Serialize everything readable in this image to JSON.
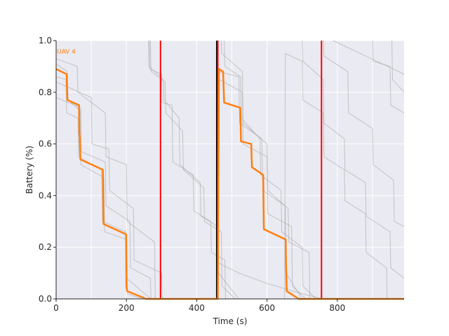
{
  "chart_data": {
    "type": "line",
    "title": "",
    "xlabel": "Time (s)",
    "ylabel": "Battery (%)",
    "xlim": [
      0,
      990
    ],
    "ylim": [
      0,
      1.0
    ],
    "xticks": [
      0,
      200,
      400,
      600,
      800
    ],
    "yticks": [
      0.0,
      0.2,
      0.4,
      0.6,
      0.8,
      1.0
    ],
    "grid": true,
    "background": "#eaeaf2",
    "colors": {
      "highlight": "#ff7f0e",
      "background_series": "#b0b0b0",
      "red_marker": "#ff0000",
      "black_marker": "#000000"
    },
    "highlight_series": {
      "name": "UAV 4",
      "points": [
        [
          0,
          0.89
        ],
        [
          30,
          0.87
        ],
        [
          32,
          0.77
        ],
        [
          65,
          0.75
        ],
        [
          66,
          0.64
        ],
        [
          67,
          0.63
        ],
        [
          69,
          0.54
        ],
        [
          133,
          0.5
        ],
        [
          134,
          0.39
        ],
        [
          135,
          0.29
        ],
        [
          199,
          0.25
        ],
        [
          200,
          0.05
        ],
        [
          202,
          0.03
        ],
        [
          256,
          0.0
        ],
        [
          460,
          0.0
        ],
        [
          463,
          0.89
        ],
        [
          475,
          0.88
        ],
        [
          478,
          0.76
        ],
        [
          524,
          0.74
        ],
        [
          526,
          0.61
        ],
        [
          555,
          0.6
        ],
        [
          557,
          0.51
        ],
        [
          589,
          0.48
        ],
        [
          591,
          0.27
        ],
        [
          653,
          0.23
        ],
        [
          654,
          0.13
        ],
        [
          656,
          0.03
        ],
        [
          690,
          0.0
        ],
        [
          990,
          0.0
        ]
      ]
    },
    "background_series": [
      {
        "points": [
          [
            0,
            0.91
          ],
          [
            32,
            0.88
          ],
          [
            34,
            0.77
          ],
          [
            68,
            0.73
          ],
          [
            70,
            0.52
          ],
          [
            136,
            0.47
          ],
          [
            138,
            0.26
          ],
          [
            201,
            0.23
          ],
          [
            203,
            0.02
          ],
          [
            245,
            0.0
          ],
          [
            460,
            0.0
          ],
          [
            462,
            0.88
          ],
          [
            520,
            0.86
          ],
          [
            522,
            0.68
          ],
          [
            585,
            0.62
          ],
          [
            588,
            0.42
          ],
          [
            652,
            0.36
          ],
          [
            654,
            0.1
          ],
          [
            700,
            0.0
          ],
          [
            990,
            0.0
          ]
        ]
      },
      {
        "points": [
          [
            0,
            0.86
          ],
          [
            28,
            0.85
          ],
          [
            30,
            0.72
          ],
          [
            62,
            0.7
          ],
          [
            64,
            0.55
          ],
          [
            130,
            0.5
          ],
          [
            132,
            0.3
          ],
          [
            198,
            0.26
          ],
          [
            200,
            0.08
          ],
          [
            270,
            0.0
          ],
          [
            460,
            0.0
          ],
          [
            464,
            0.85
          ],
          [
            530,
            0.8
          ],
          [
            532,
            0.6
          ],
          [
            600,
            0.55
          ],
          [
            602,
            0.33
          ],
          [
            670,
            0.28
          ],
          [
            672,
            0.05
          ],
          [
            710,
            0.0
          ],
          [
            990,
            0.0
          ]
        ]
      },
      {
        "points": [
          [
            0,
            0.93
          ],
          [
            60,
            0.9
          ],
          [
            62,
            0.8
          ],
          [
            140,
            0.72
          ],
          [
            142,
            0.55
          ],
          [
            200,
            0.52
          ],
          [
            202,
            0.3
          ],
          [
            280,
            0.22
          ],
          [
            282,
            0.0
          ],
          [
            460,
            0.0
          ]
        ]
      },
      {
        "points": [
          [
            0,
            0.84
          ],
          [
            100,
            0.78
          ],
          [
            102,
            0.6
          ],
          [
            150,
            0.58
          ],
          [
            152,
            0.42
          ],
          [
            220,
            0.35
          ],
          [
            222,
            0.15
          ],
          [
            300,
            0.1
          ],
          [
            302,
            0.0
          ],
          [
            460,
            0.0
          ]
        ]
      },
      {
        "points": [
          [
            0,
            0.78
          ],
          [
            70,
            0.74
          ],
          [
            72,
            0.57
          ],
          [
            140,
            0.53
          ],
          [
            142,
            0.36
          ],
          [
            210,
            0.3
          ],
          [
            212,
            0.12
          ],
          [
            268,
            0.08
          ],
          [
            270,
            0.0
          ],
          [
            460,
            0.0
          ]
        ]
      },
      {
        "points": [
          [
            265,
            1.0
          ],
          [
            266,
            0.89
          ],
          [
            300,
            0.87
          ],
          [
            302,
            0.76
          ],
          [
            330,
            0.75
          ],
          [
            332,
            0.53
          ],
          [
            390,
            0.48
          ],
          [
            392,
            0.34
          ],
          [
            440,
            0.3
          ],
          [
            442,
            0.18
          ],
          [
            480,
            0.15
          ],
          [
            482,
            0.0
          ],
          [
            560,
            0.0
          ]
        ]
      },
      {
        "points": [
          [
            263,
            1.0
          ],
          [
            264,
            0.9
          ],
          [
            305,
            0.85
          ],
          [
            307,
            0.77
          ],
          [
            350,
            0.7
          ],
          [
            352,
            0.52
          ],
          [
            410,
            0.45
          ],
          [
            412,
            0.32
          ],
          [
            460,
            0.28
          ],
          [
            462,
            0.1
          ],
          [
            520,
            0.0
          ],
          [
            600,
            0.0
          ]
        ]
      },
      {
        "points": [
          [
            268,
            1.0
          ],
          [
            270,
            0.88
          ],
          [
            310,
            0.84
          ],
          [
            312,
            0.72
          ],
          [
            360,
            0.65
          ],
          [
            362,
            0.5
          ],
          [
            420,
            0.43
          ],
          [
            422,
            0.3
          ],
          [
            470,
            0.26
          ],
          [
            472,
            0.05
          ],
          [
            510,
            0.0
          ],
          [
            560,
            0.0
          ]
        ]
      },
      {
        "points": [
          [
            470,
            1.0
          ],
          [
            471,
            0.95
          ],
          [
            530,
            0.88
          ],
          [
            532,
            0.68
          ],
          [
            600,
            0.6
          ],
          [
            602,
            0.42
          ],
          [
            660,
            0.35
          ],
          [
            662,
            0.22
          ],
          [
            720,
            0.18
          ],
          [
            722,
            0.0
          ],
          [
            780,
            0.0
          ]
        ]
      },
      {
        "points": [
          [
            478,
            1.0
          ],
          [
            480,
            0.9
          ],
          [
            525,
            0.86
          ],
          [
            527,
            0.7
          ],
          [
            580,
            0.62
          ],
          [
            582,
            0.48
          ],
          [
            640,
            0.42
          ],
          [
            642,
            0.26
          ],
          [
            700,
            0.2
          ],
          [
            702,
            0.05
          ],
          [
            740,
            0.0
          ],
          [
            800,
            0.0
          ]
        ]
      },
      {
        "points": [
          [
            700,
            1.0
          ],
          [
            702,
            0.92
          ],
          [
            760,
            0.85
          ],
          [
            762,
            0.68
          ],
          [
            820,
            0.62
          ],
          [
            822,
            0.5
          ],
          [
            880,
            0.45
          ],
          [
            882,
            0.32
          ],
          [
            950,
            0.26
          ],
          [
            952,
            0.12
          ],
          [
            990,
            0.08
          ]
        ]
      },
      {
        "points": [
          [
            760,
            1.0
          ],
          [
            762,
            0.94
          ],
          [
            830,
            0.88
          ],
          [
            832,
            0.72
          ],
          [
            900,
            0.66
          ],
          [
            902,
            0.52
          ],
          [
            960,
            0.46
          ],
          [
            962,
            0.3
          ],
          [
            990,
            0.28
          ]
        ]
      },
      {
        "points": [
          [
            788,
            1.0
          ],
          [
            990,
            0.87
          ]
        ]
      },
      {
        "points": [
          [
            590,
            0.0
          ],
          [
            650,
            0.0
          ],
          [
            652,
            0.95
          ],
          [
            700,
            0.92
          ],
          [
            702,
            0.77
          ],
          [
            760,
            0.72
          ],
          [
            762,
            0.55
          ],
          [
            820,
            0.5
          ],
          [
            822,
            0.38
          ],
          [
            880,
            0.33
          ],
          [
            882,
            0.18
          ],
          [
            940,
            0.12
          ],
          [
            942,
            0.0
          ],
          [
            990,
            0.0
          ]
        ]
      },
      {
        "points": [
          [
            460,
            0.14
          ],
          [
            520,
            0.1
          ],
          [
            600,
            0.06
          ],
          [
            700,
            0.02
          ],
          [
            760,
            0.0
          ]
        ]
      },
      {
        "points": [
          [
            900,
            1.0
          ],
          [
            902,
            0.92
          ],
          [
            950,
            0.9
          ],
          [
            952,
            0.75
          ],
          [
            990,
            0.72
          ]
        ]
      },
      {
        "points": [
          [
            955,
            1.0
          ],
          [
            957,
            0.85
          ],
          [
            990,
            0.8
          ]
        ]
      }
    ],
    "vertical_markers": [
      {
        "x": 297,
        "color": "red"
      },
      {
        "x": 457,
        "color": "black"
      },
      {
        "x": 460,
        "color": "red"
      },
      {
        "x": 755,
        "color": "red"
      }
    ]
  }
}
